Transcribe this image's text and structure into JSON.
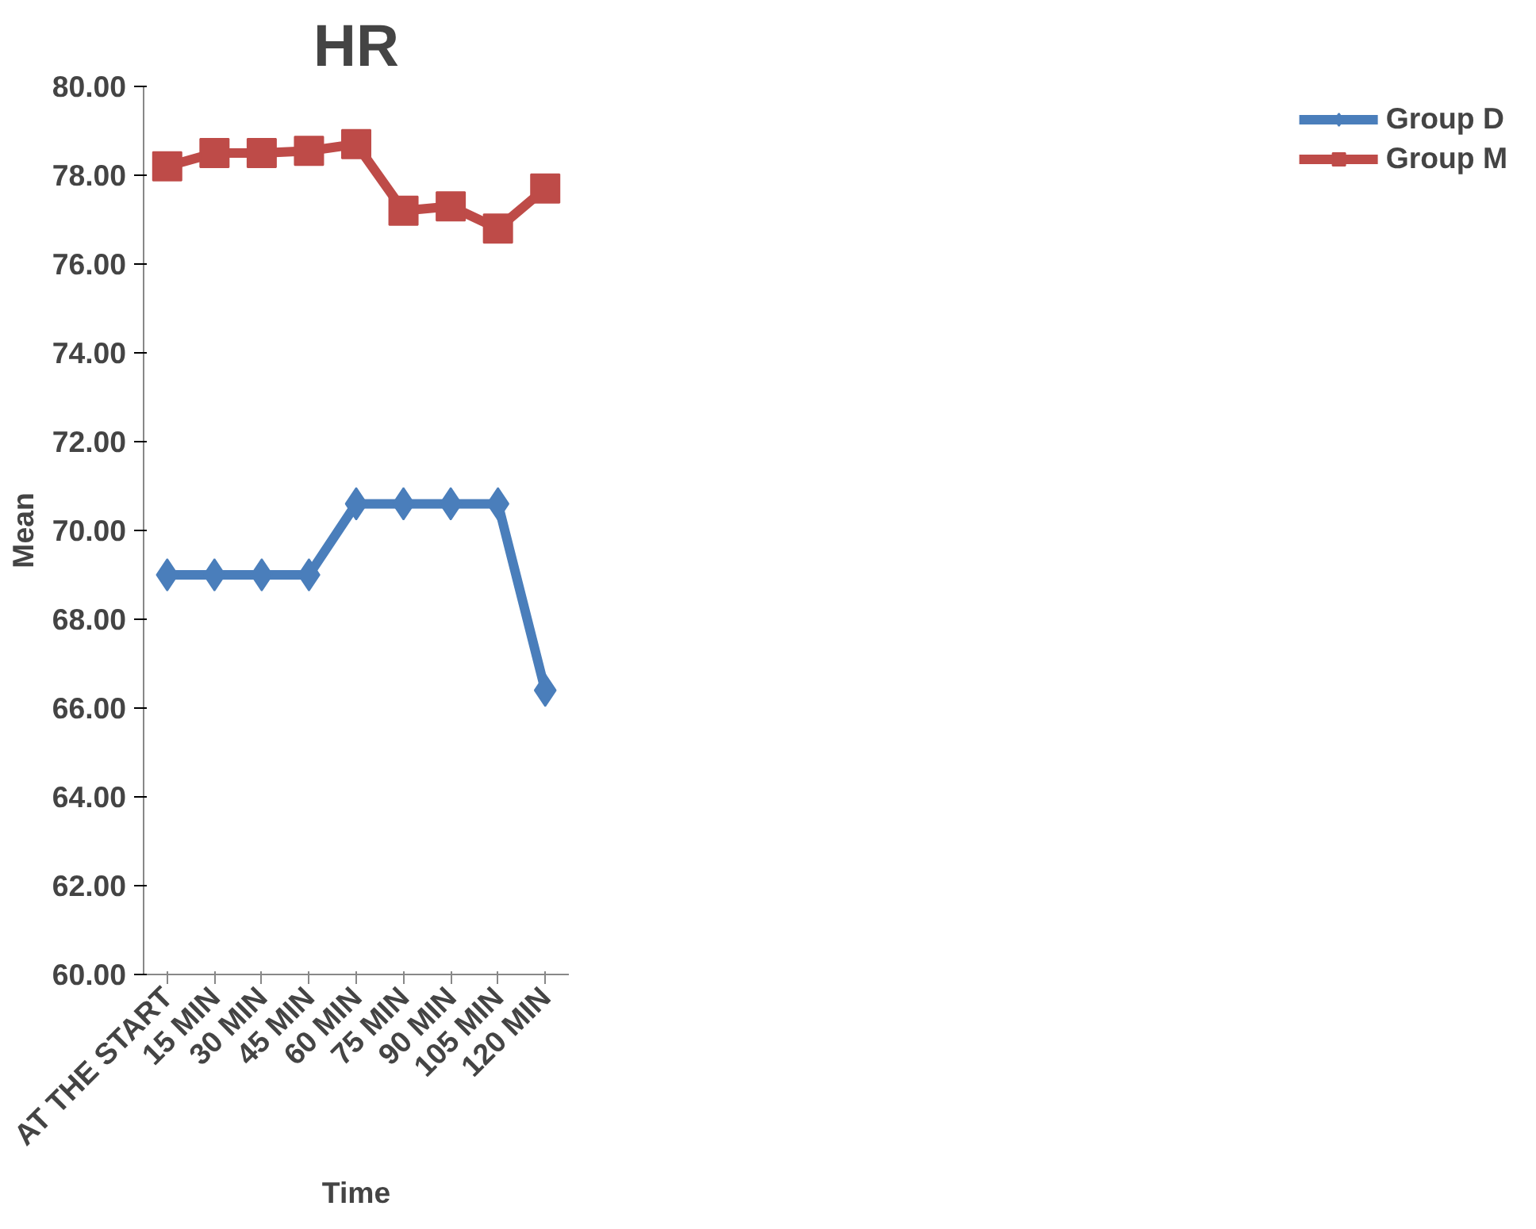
{
  "chart_data": {
    "type": "line",
    "title": "HR",
    "xlabel": "Time",
    "ylabel": "Mean",
    "categories": [
      "AT THE START",
      "15 MIN",
      "30 MIN",
      "45 MIN",
      "60 MIN",
      "75 MIN",
      "90 MIN",
      "105 MIN",
      "120 MIN"
    ],
    "series": [
      {
        "name": "Group D",
        "color": "#4a7ebb",
        "marker": "diamond",
        "values": [
          69.0,
          69.0,
          69.0,
          69.0,
          70.6,
          70.6,
          70.6,
          70.6,
          66.4
        ]
      },
      {
        "name": "Group M",
        "color": "#be4b48",
        "marker": "square",
        "values": [
          78.2,
          78.5,
          78.5,
          78.55,
          78.7,
          77.2,
          77.3,
          76.8,
          77.7
        ]
      }
    ],
    "ylim": [
      60,
      80
    ],
    "yticks": [
      {
        "value": 60,
        "label": "60.00"
      },
      {
        "value": 62,
        "label": "62.00"
      },
      {
        "value": 64,
        "label": "64.00"
      },
      {
        "value": 66,
        "label": "66.00"
      },
      {
        "value": 68,
        "label": "68.00"
      },
      {
        "value": 70,
        "label": "70.00"
      },
      {
        "value": 72,
        "label": "72.00"
      },
      {
        "value": 74,
        "label": "74.00"
      },
      {
        "value": 76,
        "label": "76.00"
      },
      {
        "value": 78,
        "label": "78.00"
      },
      {
        "value": 80,
        "label": "80.00"
      }
    ],
    "grid": false,
    "legend": "right",
    "line_style": "solid"
  }
}
